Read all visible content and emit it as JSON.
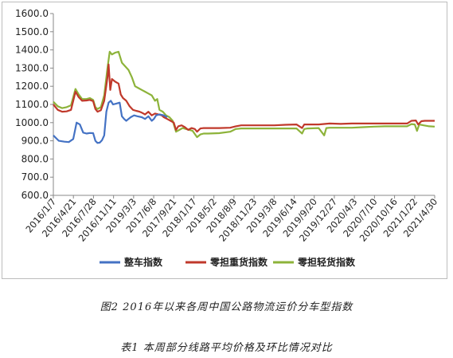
{
  "figure_caption": "图2  2016年以来各周中国公路物流运价分车型指数",
  "table_caption": "表1   本周部分线路平均价格及环比情况对比",
  "chart_data": {
    "type": "line",
    "title": "",
    "xlabel": "",
    "ylabel": "",
    "ylim": [
      600,
      1600
    ],
    "yticks": [
      "600.0",
      "700.0",
      "800.0",
      "900.0",
      "1000.0",
      "1100.0",
      "1200.0",
      "1300.0",
      "1400.0",
      "1500.0",
      "1600.0"
    ],
    "ytick_values": [
      600,
      700,
      800,
      900,
      1000,
      1100,
      1200,
      1300,
      1400,
      1500,
      1600
    ],
    "xticks": [
      "2016/1/7",
      "2016/4/21",
      "2016/7/28",
      "2016/11/11",
      "2019/3/3",
      "2017/6/8",
      "2017/9/21",
      "2018/1/17",
      "2018/5/2",
      "2018/8/9",
      "2018/11/23",
      "2019/3/8",
      "2019/6/14",
      "2019/9/20",
      "2019/12/27",
      "2020/4/3",
      "2020/7/10",
      "2020/10/16",
      "2021/1/22",
      "2021/4/30"
    ],
    "grid": false,
    "legend_position": "bottom",
    "series": [
      {
        "name": "整车指数",
        "color": "#4472C4",
        "points": [
          [
            0,
            930
          ],
          [
            0.5,
            900
          ],
          [
            1,
            895
          ],
          [
            1.4,
            893
          ],
          [
            1.8,
            910
          ],
          [
            2.1,
            1000
          ],
          [
            2.4,
            990
          ],
          [
            2.7,
            945
          ],
          [
            3,
            940
          ],
          [
            3.3,
            943
          ],
          [
            3.6,
            942
          ],
          [
            3.8,
            900
          ],
          [
            4,
            888
          ],
          [
            4.2,
            890
          ],
          [
            4.4,
            903
          ],
          [
            4.6,
            930
          ],
          [
            4.8,
            1060
          ],
          [
            5,
            1110
          ],
          [
            5.2,
            1120
          ],
          [
            5.4,
            1100
          ],
          [
            5.7,
            1105
          ],
          [
            6,
            1110
          ],
          [
            6.2,
            1035
          ],
          [
            6.4,
            1020
          ],
          [
            6.6,
            1010
          ],
          [
            6.8,
            1020
          ],
          [
            7,
            1030
          ],
          [
            7.3,
            1040
          ],
          [
            7.6,
            1035
          ],
          [
            8,
            1030
          ],
          [
            8.3,
            1020
          ],
          [
            8.6,
            1035
          ],
          [
            8.9,
            1010
          ],
          [
            9.1,
            1020
          ],
          [
            9.3,
            1040
          ],
          [
            9.6,
            1045
          ],
          [
            10,
            1040
          ],
          [
            10.3,
            1030
          ]
        ]
      },
      {
        "name": "零担重货指数",
        "color": "#C0392B",
        "points": [
          [
            0,
            1100
          ],
          [
            0.4,
            1070
          ],
          [
            0.8,
            1060
          ],
          [
            1.2,
            1062
          ],
          [
            1.6,
            1070
          ],
          [
            2,
            1170
          ],
          [
            2.3,
            1140
          ],
          [
            2.6,
            1120
          ],
          [
            3,
            1122
          ],
          [
            3.3,
            1125
          ],
          [
            3.6,
            1118
          ],
          [
            3.8,
            1075
          ],
          [
            4,
            1060
          ],
          [
            4.3,
            1068
          ],
          [
            4.6,
            1120
          ],
          [
            4.9,
            1250
          ],
          [
            5,
            1320
          ],
          [
            5.15,
            1180
          ],
          [
            5.3,
            1240
          ],
          [
            5.6,
            1225
          ],
          [
            5.9,
            1215
          ],
          [
            6.1,
            1155
          ],
          [
            6.3,
            1135
          ],
          [
            6.6,
            1120
          ],
          [
            6.9,
            1090
          ],
          [
            7.2,
            1070
          ],
          [
            7.5,
            1065
          ],
          [
            7.8,
            1060
          ],
          [
            8,
            1055
          ],
          [
            8.3,
            1045
          ],
          [
            8.6,
            1060
          ],
          [
            8.9,
            1040
          ],
          [
            9.2,
            1050
          ],
          [
            9.5,
            1045
          ],
          [
            9.8,
            1040
          ],
          [
            10,
            1030
          ],
          [
            10.3,
            1020
          ],
          [
            10.6,
            1010
          ],
          [
            10.9,
            1000
          ],
          [
            11.1,
            960
          ],
          [
            11.3,
            980
          ],
          [
            11.6,
            985
          ],
          [
            11.9,
            975
          ],
          [
            12.2,
            960
          ],
          [
            12.5,
            970
          ],
          [
            12.8,
            965
          ],
          [
            13,
            950
          ],
          [
            13.3,
            968
          ],
          [
            13.6,
            970
          ],
          [
            14,
            970
          ],
          [
            15,
            970
          ],
          [
            16,
            972
          ],
          [
            16.5,
            980
          ],
          [
            17,
            985
          ],
          [
            18,
            985
          ],
          [
            19,
            985
          ],
          [
            20,
            985
          ],
          [
            21,
            988
          ],
          [
            22,
            990
          ],
          [
            22.5,
            970
          ],
          [
            22.7,
            990
          ],
          [
            23,
            990
          ],
          [
            24,
            990
          ],
          [
            25,
            995
          ],
          [
            26,
            993
          ],
          [
            27,
            995
          ],
          [
            28,
            995
          ],
          [
            29,
            995
          ],
          [
            30,
            995
          ],
          [
            31,
            995
          ],
          [
            32,
            995
          ],
          [
            32.4,
            1010
          ],
          [
            32.8,
            1012
          ],
          [
            33,
            990
          ],
          [
            33.3,
            1008
          ],
          [
            33.6,
            1010
          ],
          [
            34,
            1010
          ],
          [
            34.5,
            1010
          ]
        ]
      },
      {
        "name": "零担轻货指数",
        "color": "#8DB33A",
        "points": [
          [
            0,
            1115
          ],
          [
            0.4,
            1090
          ],
          [
            0.8,
            1080
          ],
          [
            1.2,
            1085
          ],
          [
            1.6,
            1095
          ],
          [
            2,
            1185
          ],
          [
            2.3,
            1155
          ],
          [
            2.6,
            1130
          ],
          [
            3,
            1130
          ],
          [
            3.3,
            1135
          ],
          [
            3.6,
            1125
          ],
          [
            3.8,
            1085
          ],
          [
            4,
            1075
          ],
          [
            4.3,
            1085
          ],
          [
            4.6,
            1150
          ],
          [
            4.9,
            1300
          ],
          [
            5.1,
            1390
          ],
          [
            5.3,
            1375
          ],
          [
            5.6,
            1385
          ],
          [
            5.9,
            1390
          ],
          [
            6.2,
            1330
          ],
          [
            6.5,
            1310
          ],
          [
            6.8,
            1290
          ],
          [
            7.1,
            1250
          ],
          [
            7.4,
            1200
          ],
          [
            7.7,
            1190
          ],
          [
            8,
            1180
          ],
          [
            8.3,
            1170
          ],
          [
            8.6,
            1160
          ],
          [
            8.9,
            1150
          ],
          [
            9.2,
            1120
          ],
          [
            9.4,
            1130
          ],
          [
            9.6,
            1070
          ],
          [
            9.9,
            1060
          ],
          [
            10.2,
            1040
          ],
          [
            10.5,
            1030
          ],
          [
            10.8,
            1010
          ],
          [
            11.1,
            950
          ],
          [
            11.4,
            960
          ],
          [
            11.7,
            970
          ],
          [
            12,
            965
          ],
          [
            12.3,
            960
          ],
          [
            12.6,
            955
          ],
          [
            13,
            920
          ],
          [
            13.3,
            935
          ],
          [
            13.6,
            940
          ],
          [
            14,
            940
          ],
          [
            15,
            942
          ],
          [
            16,
            950
          ],
          [
            16.5,
            965
          ],
          [
            17,
            968
          ],
          [
            18,
            968
          ],
          [
            19,
            968
          ],
          [
            20,
            968
          ],
          [
            21,
            968
          ],
          [
            22,
            968
          ],
          [
            22.5,
            940
          ],
          [
            22.7,
            965
          ],
          [
            23,
            968
          ],
          [
            24,
            970
          ],
          [
            24.5,
            930
          ],
          [
            24.7,
            970
          ],
          [
            25,
            972
          ],
          [
            26,
            972
          ],
          [
            27,
            972
          ],
          [
            28,
            975
          ],
          [
            29,
            978
          ],
          [
            30,
            980
          ],
          [
            31,
            980
          ],
          [
            32,
            980
          ],
          [
            32.4,
            992
          ],
          [
            32.7,
            990
          ],
          [
            32.9,
            955
          ],
          [
            33.1,
            990
          ],
          [
            33.5,
            985
          ],
          [
            34,
            980
          ],
          [
            34.5,
            978
          ]
        ]
      }
    ]
  }
}
